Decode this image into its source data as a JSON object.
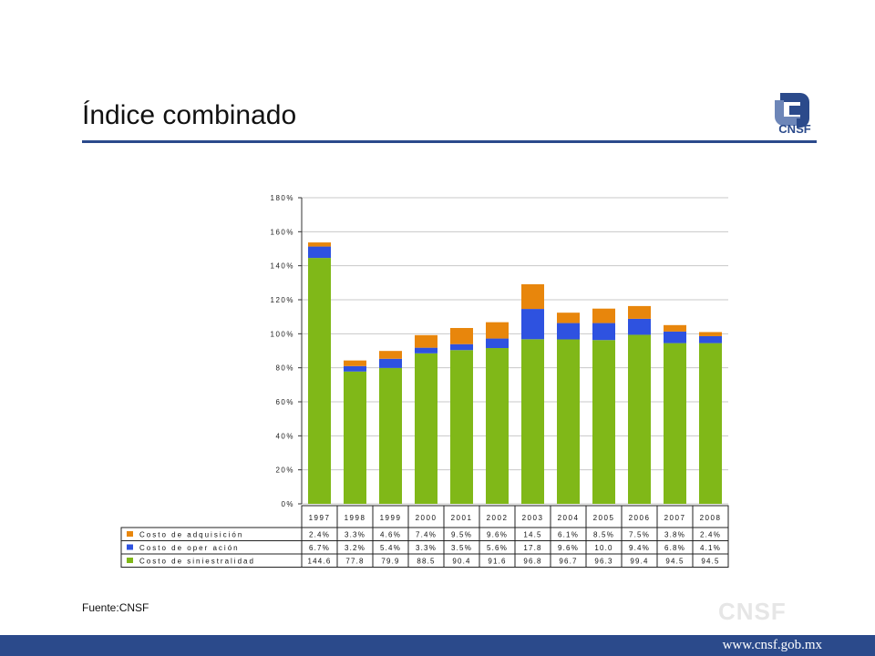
{
  "header": {
    "title": "Índice combinado",
    "logo_text": "CNSF"
  },
  "footer": {
    "source": "Fuente:CNSF",
    "url": "www.cnsf.gob.mx",
    "watermark": "CNSF"
  },
  "colors": {
    "accent": "#2b4a8b",
    "acquisition": "#e8860c",
    "operation": "#2e52e0",
    "claims": "#80b818"
  },
  "chart_data": {
    "type": "bar",
    "stacked": true,
    "categories": [
      "1997",
      "1998",
      "1999",
      "2000",
      "2001",
      "2002",
      "2003",
      "2004",
      "2005",
      "2006",
      "2007",
      "2008"
    ],
    "ylim": [
      0,
      180
    ],
    "yticks": [
      0,
      20,
      40,
      60,
      80,
      100,
      120,
      140,
      160,
      180
    ],
    "ytick_labels": [
      "0%",
      "20%",
      "40%",
      "60%",
      "80%",
      "100%",
      "120%",
      "140%",
      "160%",
      "180%"
    ],
    "grid": true,
    "legend": "table-below",
    "series": [
      {
        "name": "Costo de siniestralidad",
        "color": "#80b818",
        "values": [
          144.6,
          77.8,
          79.9,
          88.5,
          90.4,
          91.6,
          96.8,
          96.7,
          96.3,
          99.4,
          94.5,
          94.5
        ],
        "labels": [
          "144.6",
          "77.8",
          "79.9",
          "88.5",
          "90.4",
          "91.6",
          "96.8",
          "96.7",
          "96.3",
          "99.4",
          "94.5",
          "94.5"
        ]
      },
      {
        "name": "Costo de oper ación",
        "color": "#2e52e0",
        "values": [
          6.7,
          3.2,
          5.4,
          3.3,
          3.5,
          5.6,
          17.8,
          9.6,
          10.0,
          9.4,
          6.8,
          4.1
        ],
        "labels": [
          "6.7%",
          "3.2%",
          "5.4%",
          "3.3%",
          "3.5%",
          "5.6%",
          "17.8",
          "9.6%",
          "10.0",
          "9.4%",
          "6.8%",
          "4.1%"
        ]
      },
      {
        "name": "Costo de adquisición",
        "color": "#e8860c",
        "values": [
          2.4,
          3.3,
          4.6,
          7.4,
          9.5,
          9.6,
          14.5,
          6.1,
          8.5,
          7.5,
          3.8,
          2.4
        ],
        "labels": [
          "2.4%",
          "3.3%",
          "4.6%",
          "7.4%",
          "9.5%",
          "9.6%",
          "14.5",
          "6.1%",
          "8.5%",
          "7.5%",
          "3.8%",
          "2.4%"
        ]
      }
    ],
    "table_rows": [
      "Costo de adquisición",
      "Costo de oper ación",
      "Costo de siniestralidad"
    ]
  }
}
